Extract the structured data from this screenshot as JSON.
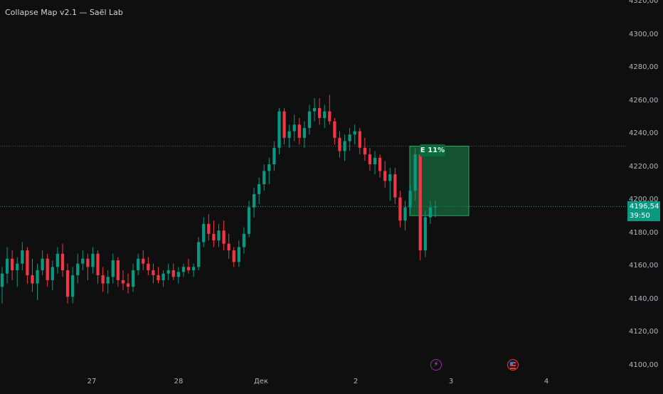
{
  "title": "Collapse Map v2.1 — Saël Lab",
  "colors": {
    "up": "#089981",
    "down": "#f23645",
    "background": "#0f0f0f",
    "zone": "#1b8a4e",
    "price_tag": "#089981"
  },
  "price_tag": {
    "price": "4196,54",
    "countdown": "39:50"
  },
  "entry_label": "E 11%",
  "events": [
    {
      "icon": "lightning-event-icon"
    },
    {
      "icon": "us-flag-event-icon"
    }
  ],
  "chart_data": {
    "type": "candlestick",
    "title": "Collapse Map v2.1 — Saël Lab",
    "y_ticks": [
      "4320,00",
      "4300,00",
      "4280,00",
      "4260,00",
      "4240,00",
      "4220,00",
      "4200,00",
      "4180,00",
      "4160,00",
      "4140,00",
      "4120,00",
      "4100,00"
    ],
    "x_ticks": [
      "27",
      "28",
      "Дек",
      "2",
      "3",
      "4"
    ],
    "ylim": [
      4100,
      4320
    ],
    "horizontal_lines": [
      4233,
      4196.54
    ],
    "entry_zone": {
      "top": 4233,
      "bottom": 4191,
      "label": "E 11%"
    },
    "last_price": 4196.54,
    "candles": [
      [
        4148,
        4160,
        4138,
        4156
      ],
      [
        4156,
        4172,
        4150,
        4165
      ],
      [
        4165,
        4170,
        4152,
        4158
      ],
      [
        4158,
        4166,
        4148,
        4162
      ],
      [
        4162,
        4175,
        4158,
        4170
      ],
      [
        4170,
        4172,
        4150,
        4155
      ],
      [
        4155,
        4165,
        4145,
        4150
      ],
      [
        4150,
        4162,
        4140,
        4158
      ],
      [
        4158,
        4170,
        4155,
        4165
      ],
      [
        4165,
        4168,
        4148,
        4152
      ],
      [
        4152,
        4164,
        4146,
        4160
      ],
      [
        4160,
        4172,
        4156,
        4168
      ],
      [
        4168,
        4174,
        4154,
        4158
      ],
      [
        4158,
        4162,
        4138,
        4142
      ],
      [
        4142,
        4160,
        4138,
        4155
      ],
      [
        4155,
        4168,
        4150,
        4162
      ],
      [
        4162,
        4170,
        4158,
        4165
      ],
      [
        4165,
        4168,
        4152,
        4160
      ],
      [
        4160,
        4172,
        4156,
        4168
      ],
      [
        4168,
        4170,
        4150,
        4155
      ],
      [
        4155,
        4160,
        4145,
        4150
      ],
      [
        4150,
        4158,
        4144,
        4154
      ],
      [
        4154,
        4168,
        4150,
        4164
      ],
      [
        4164,
        4166,
        4148,
        4152
      ],
      [
        4152,
        4158,
        4146,
        4150
      ],
      [
        4150,
        4156,
        4144,
        4148
      ],
      [
        4148,
        4162,
        4145,
        4158
      ],
      [
        4158,
        4168,
        4155,
        4165
      ],
      [
        4165,
        4170,
        4158,
        4162
      ],
      [
        4162,
        4166,
        4155,
        4158
      ],
      [
        4158,
        4162,
        4150,
        4155
      ],
      [
        4155,
        4160,
        4150,
        4152
      ],
      [
        4152,
        4158,
        4148,
        4156
      ],
      [
        4156,
        4162,
        4152,
        4158
      ],
      [
        4158,
        4162,
        4152,
        4154
      ],
      [
        4154,
        4160,
        4150,
        4157
      ],
      [
        4157,
        4162,
        4154,
        4160
      ],
      [
        4160,
        4165,
        4156,
        4158
      ],
      [
        4158,
        4162,
        4154,
        4160
      ],
      [
        4160,
        4178,
        4158,
        4175
      ],
      [
        4175,
        4190,
        4172,
        4186
      ],
      [
        4186,
        4192,
        4176,
        4180
      ],
      [
        4180,
        4188,
        4172,
        4176
      ],
      [
        4176,
        4186,
        4172,
        4182
      ],
      [
        4182,
        4188,
        4170,
        4174
      ],
      [
        4174,
        4180,
        4165,
        4170
      ],
      [
        4170,
        4172,
        4160,
        4163
      ],
      [
        4163,
        4176,
        4160,
        4172
      ],
      [
        4172,
        4184,
        4168,
        4180
      ],
      [
        4180,
        4200,
        4178,
        4196
      ],
      [
        4196,
        4208,
        4190,
        4204
      ],
      [
        4204,
        4214,
        4198,
        4210
      ],
      [
        4210,
        4222,
        4206,
        4218
      ],
      [
        4218,
        4226,
        4210,
        4222
      ],
      [
        4222,
        4236,
        4218,
        4232
      ],
      [
        4232,
        4256,
        4228,
        4254
      ],
      [
        4254,
        4256,
        4234,
        4238
      ],
      [
        4238,
        4246,
        4232,
        4242
      ],
      [
        4242,
        4252,
        4236,
        4246
      ],
      [
        4246,
        4250,
        4234,
        4238
      ],
      [
        4238,
        4248,
        4232,
        4244
      ],
      [
        4244,
        4258,
        4240,
        4254
      ],
      [
        4254,
        4262,
        4248,
        4256
      ],
      [
        4256,
        4262,
        4246,
        4250
      ],
      [
        4250,
        4258,
        4244,
        4254
      ],
      [
        4254,
        4264,
        4246,
        4248
      ],
      [
        4248,
        4250,
        4234,
        4238
      ],
      [
        4238,
        4242,
        4226,
        4230
      ],
      [
        4230,
        4240,
        4224,
        4236
      ],
      [
        4236,
        4244,
        4230,
        4240
      ],
      [
        4240,
        4246,
        4234,
        4242
      ],
      [
        4242,
        4244,
        4228,
        4232
      ],
      [
        4232,
        4238,
        4224,
        4228
      ],
      [
        4228,
        4232,
        4218,
        4222
      ],
      [
        4222,
        4230,
        4216,
        4226
      ],
      [
        4226,
        4228,
        4214,
        4218
      ],
      [
        4218,
        4224,
        4208,
        4212
      ],
      [
        4212,
        4220,
        4200,
        4216
      ],
      [
        4216,
        4220,
        4198,
        4202
      ],
      [
        4202,
        4206,
        4184,
        4188
      ],
      [
        4188,
        4200,
        4182,
        4196
      ],
      [
        4196,
        4210,
        4192,
        4206
      ],
      [
        4206,
        4232,
        4200,
        4228
      ],
      [
        4228,
        4230,
        4164,
        4170
      ],
      [
        4170,
        4194,
        4166,
        4190
      ],
      [
        4190,
        4200,
        4186,
        4196
      ],
      [
        4196,
        4200,
        4190,
        4196.54
      ]
    ]
  }
}
